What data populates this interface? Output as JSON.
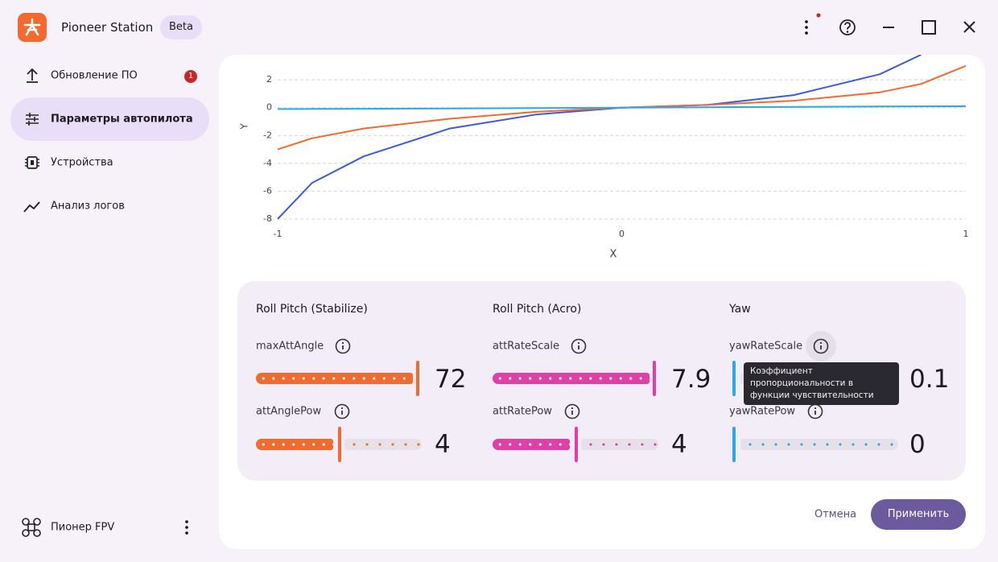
{
  "header": {
    "app_name": "Pioneer Station",
    "badge": "Beta"
  },
  "sidebar": {
    "items": [
      {
        "label": "Обновление ПО",
        "badge": "1"
      },
      {
        "label": "Параметры автопилота"
      },
      {
        "label": "Устройства"
      },
      {
        "label": "Анализ логов"
      }
    ],
    "footer": "Пионер FPV"
  },
  "chart_data": {
    "type": "line",
    "x_label": "X",
    "y_label": "Y",
    "x": [
      -1,
      -0.9,
      -0.75,
      -0.5,
      -0.25,
      0,
      0.25,
      0.5,
      0.75,
      0.87,
      1
    ],
    "series": [
      {
        "color": "#3b5bd9",
        "values": [
          -8,
          -5.4,
          -3.5,
          -1.5,
          -0.5,
          0,
          0.2,
          0.9,
          2.4,
          3.8,
          null
        ]
      },
      {
        "color": "#f26a2e",
        "values": [
          -3,
          -2.2,
          -1.5,
          -0.8,
          -0.3,
          0,
          0.2,
          0.5,
          1.1,
          1.7,
          3
        ]
      },
      {
        "color": "#2ba8e8",
        "values": [
          -0.1,
          -0.09,
          -0.08,
          -0.06,
          -0.03,
          0,
          0.03,
          0.06,
          0.08,
          0.09,
          0.1
        ]
      }
    ],
    "xlim": [
      -1,
      1
    ],
    "ylim": [
      -8,
      3.8
    ],
    "xticks": [
      -1,
      0,
      1
    ],
    "yticks": [
      2,
      0,
      -2,
      -4,
      -6,
      -8
    ],
    "grid": true
  },
  "params": {
    "sections": [
      {
        "title": "Roll Pitch (Stabilize)",
        "items": [
          {
            "name": "maxAttAngle",
            "value": 72
          },
          {
            "name": "attAnglePow",
            "value": 4
          }
        ]
      },
      {
        "title": "Roll Pitch (Acro)",
        "items": [
          {
            "name": "attRateScale",
            "value": 7.9
          },
          {
            "name": "attRatePow",
            "value": 4
          }
        ]
      },
      {
        "title": "Yaw",
        "items": [
          {
            "name": "yawRateScale",
            "value": 0.1
          },
          {
            "name": "yawRatePow",
            "value": 0
          }
        ]
      }
    ]
  },
  "tooltip": "Коэффициент пропорциональности в функции чувствительности",
  "buttons": {
    "cancel": "Отмена",
    "apply": "Применить"
  }
}
